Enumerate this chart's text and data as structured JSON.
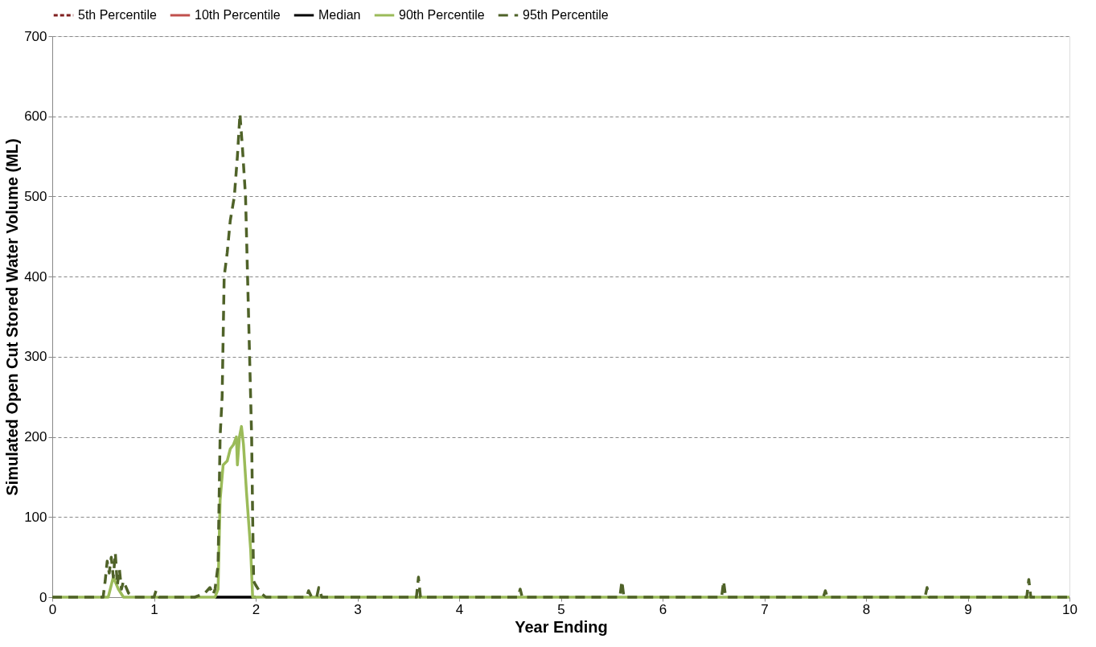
{
  "chart_data": {
    "type": "line",
    "xlabel": "Year Ending",
    "ylabel": "Simulated Open Cut  Stored Water Volume (ML)",
    "xlim": [
      0,
      10
    ],
    "xticks": [
      0,
      1,
      2,
      3,
      4,
      5,
      6,
      7,
      8,
      9,
      10
    ],
    "ylim": [
      0,
      700
    ],
    "yticks": [
      0,
      100,
      200,
      300,
      400,
      500,
      600,
      700
    ],
    "grid": "y",
    "legend": "top",
    "marker": "none",
    "series": [
      {
        "name": "5th Percentile",
        "color": "#7f1f1f",
        "line_style": "dotted"
      },
      {
        "name": "10th Percentile",
        "color": "#c0504d",
        "line_style": "solid"
      },
      {
        "name": "Median",
        "color": "#000000",
        "line_style": "solid",
        "x": [
          1.6,
          2.0
        ],
        "values": [
          0,
          0
        ]
      },
      {
        "name": "90th Percentile",
        "color": "#9bbb59",
        "line_style": "solid",
        "x": [
          0,
          0.55,
          0.6,
          0.65,
          0.7,
          1.6,
          1.63,
          1.65,
          1.68,
          1.72,
          1.75,
          1.78,
          1.81,
          1.82,
          1.84,
          1.86,
          1.88,
          1.91,
          1.95,
          1.97,
          2.0,
          10
        ],
        "values": [
          0,
          0,
          25,
          10,
          0,
          0,
          10,
          121,
          165,
          170,
          185,
          190,
          200,
          165,
          200,
          213,
          190,
          130,
          60,
          0,
          0,
          0
        ]
      },
      {
        "name": "95th Percentile",
        "color": "#4f6228",
        "line_style": "dashed",
        "x": [
          0,
          0.5,
          0.52,
          0.54,
          0.56,
          0.58,
          0.6,
          0.62,
          0.64,
          0.66,
          0.68,
          0.7,
          0.75,
          0.8,
          1.0,
          1.02,
          1.05,
          1.2,
          1.4,
          1.5,
          1.55,
          1.58,
          1.6,
          1.63,
          1.65,
          1.67,
          1.69,
          1.72,
          1.75,
          1.79,
          1.82,
          1.845,
          1.87,
          1.9,
          1.92,
          1.94,
          1.96,
          1.97,
          1.98,
          2.0,
          2.05,
          2.1,
          2.5,
          2.52,
          2.55,
          2.6,
          2.62,
          2.65,
          3.0,
          3.58,
          3.6,
          3.62,
          4.58,
          4.6,
          4.62,
          5.58,
          5.6,
          5.62,
          6.58,
          6.6,
          6.62,
          7.58,
          7.6,
          7.62,
          8.58,
          8.6,
          8.62,
          9.58,
          9.6,
          9.62,
          10
        ],
        "values": [
          0,
          0,
          20,
          45,
          30,
          50,
          25,
          55,
          15,
          35,
          10,
          20,
          5,
          0,
          0,
          8,
          0,
          0,
          0,
          5,
          12,
          3,
          10,
          40,
          200,
          250,
          400,
          430,
          470,
          500,
          550,
          603,
          560,
          500,
          400,
          300,
          200,
          100,
          20,
          15,
          5,
          0,
          0,
          8,
          0,
          0,
          12,
          0,
          0,
          0,
          25,
          0,
          0,
          10,
          0,
          0,
          20,
          0,
          0,
          20,
          0,
          0,
          8,
          0,
          0,
          12,
          0,
          0,
          22,
          0,
          0
        ]
      }
    ]
  }
}
